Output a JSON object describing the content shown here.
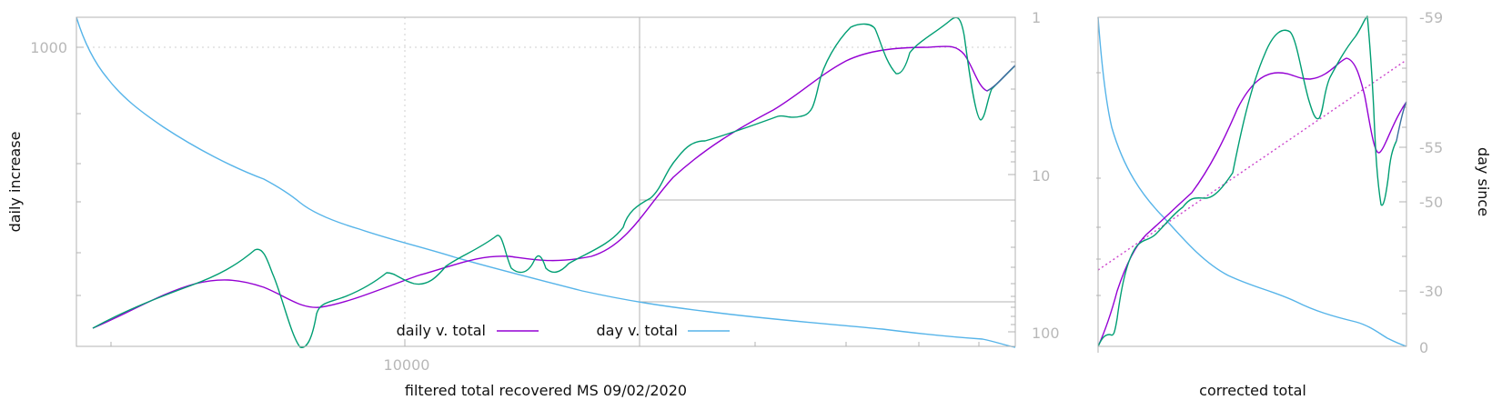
{
  "chart_data": [
    {
      "type": "line",
      "xlabel": "filtered total recovered MS 09/02/2020",
      "ylabel": "daily increase",
      "y2label": "",
      "x_scale": "log",
      "y_scale": "log",
      "y2_scale": "log",
      "x_ticks": [
        {
          "value": 10000,
          "label": "10000"
        }
      ],
      "y_ticks": [
        {
          "value": 1000,
          "label": "1000"
        }
      ],
      "y2_ticks": [
        {
          "value": 1,
          "label": "1"
        },
        {
          "value": 10,
          "label": "10"
        },
        {
          "value": 100,
          "label": "100"
        }
      ],
      "legend": {
        "position": "bottom-center",
        "entries": [
          "daily v. total",
          "day v. total"
        ]
      },
      "series": [
        {
          "name": "daily v. total",
          "color": "#9400d3"
        },
        {
          "name": "day v. total",
          "color": "#56b4e9"
        },
        {
          "color": "#009e73"
        }
      ]
    },
    {
      "type": "line",
      "xlabel": "corrected total",
      "ylabel": "",
      "y2label": "day since",
      "y2_ticks": [
        {
          "value": -59,
          "label": "-59"
        },
        {
          "value": -55,
          "label": "-55"
        },
        {
          "value": -50,
          "label": "-50"
        },
        {
          "value": -30,
          "label": "-30"
        },
        {
          "value": 0,
          "label": "0"
        }
      ],
      "series": [
        {
          "color": "#9400d3"
        },
        {
          "color": "#56b4e9"
        },
        {
          "color": "#009e73"
        },
        {
          "color": "#cc44cc",
          "style": "dotted"
        }
      ]
    }
  ]
}
